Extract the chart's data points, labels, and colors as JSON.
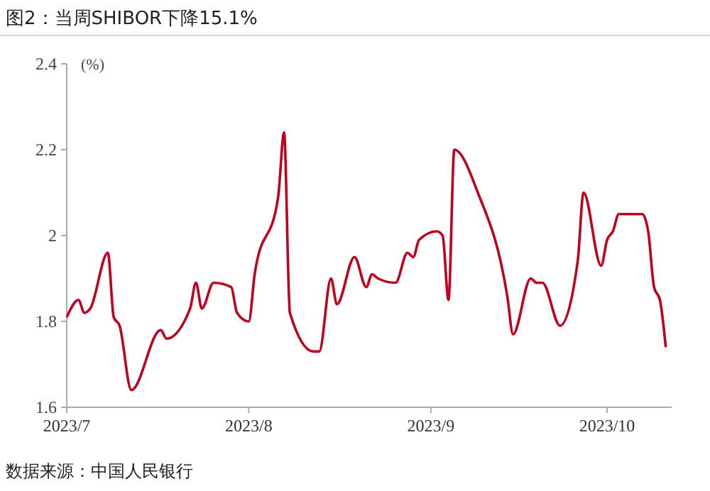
{
  "chart_data": {
    "type": "line",
    "title": "图2：当周SHIBOR下降15.1%",
    "ylabel": "(%)",
    "annotations": [
      "数据来源：中国人民银行"
    ],
    "x": [
      "2023-07-01",
      "2023-07-03",
      "2023-07-04",
      "2023-07-05",
      "2023-07-08",
      "2023-07-09",
      "2023-07-10",
      "2023-07-12",
      "2023-07-17",
      "2023-07-18",
      "2023-07-22",
      "2023-07-23",
      "2023-07-24",
      "2023-07-26",
      "2023-07-29",
      "2023-07-30",
      "2023-08-01",
      "2023-08-02",
      "2023-08-06",
      "2023-08-07",
      "2023-08-08",
      "2023-08-12",
      "2023-08-13",
      "2023-08-15",
      "2023-08-16",
      "2023-08-19",
      "2023-08-21",
      "2023-08-22",
      "2023-08-23",
      "2023-08-26",
      "2023-08-28",
      "2023-08-29",
      "2023-08-30",
      "2023-09-02",
      "2023-09-03",
      "2023-09-04",
      "2023-09-05",
      "2023-09-09",
      "2023-09-14",
      "2023-09-15",
      "2023-09-18",
      "2023-09-19",
      "2023-09-20",
      "2023-09-23",
      "2023-09-26",
      "2023-09-27",
      "2023-09-30",
      "2023-10-01",
      "2023-10-02",
      "2023-10-03",
      "2023-10-07",
      "2023-10-08",
      "2023-10-09",
      "2023-10-10",
      "2023-10-11"
    ],
    "series": [
      {
        "color": "#c0001c",
        "values": [
          1.81,
          1.85,
          1.82,
          1.83,
          1.96,
          1.81,
          1.79,
          1.64,
          1.78,
          1.76,
          1.83,
          1.89,
          1.83,
          1.89,
          1.88,
          1.82,
          1.8,
          1.91,
          2.09,
          2.24,
          1.82,
          1.73,
          1.73,
          1.9,
          1.84,
          1.95,
          1.88,
          1.91,
          1.9,
          1.89,
          1.96,
          1.95,
          1.99,
          2.01,
          2.0,
          1.85,
          2.2,
          2.1,
          1.86,
          1.77,
          1.9,
          1.89,
          1.89,
          1.79,
          1.94,
          2.1,
          1.93,
          1.99,
          2.01,
          2.05,
          2.05,
          2.01,
          1.88,
          1.85,
          1.74
        ]
      }
    ],
    "xlim": [
      "2023-07-01",
      "2023-10-12"
    ],
    "xticks": [
      {
        "value": "2023-07-01",
        "label": "2023/7"
      },
      {
        "value": "2023-08-01",
        "label": "2023/8"
      },
      {
        "value": "2023-09-01",
        "label": "2023/9"
      },
      {
        "value": "2023-10-01",
        "label": "2023/10"
      }
    ],
    "ylim": [
      1.6,
      2.4
    ],
    "yticks": [
      {
        "value": 1.6,
        "label": "1.6"
      },
      {
        "value": 1.8,
        "label": "1.8"
      },
      {
        "value": 2,
        "label": "2"
      },
      {
        "value": 2.2,
        "label": "2.2"
      },
      {
        "value": 2.4,
        "label": "2.4"
      }
    ],
    "grid": false
  }
}
